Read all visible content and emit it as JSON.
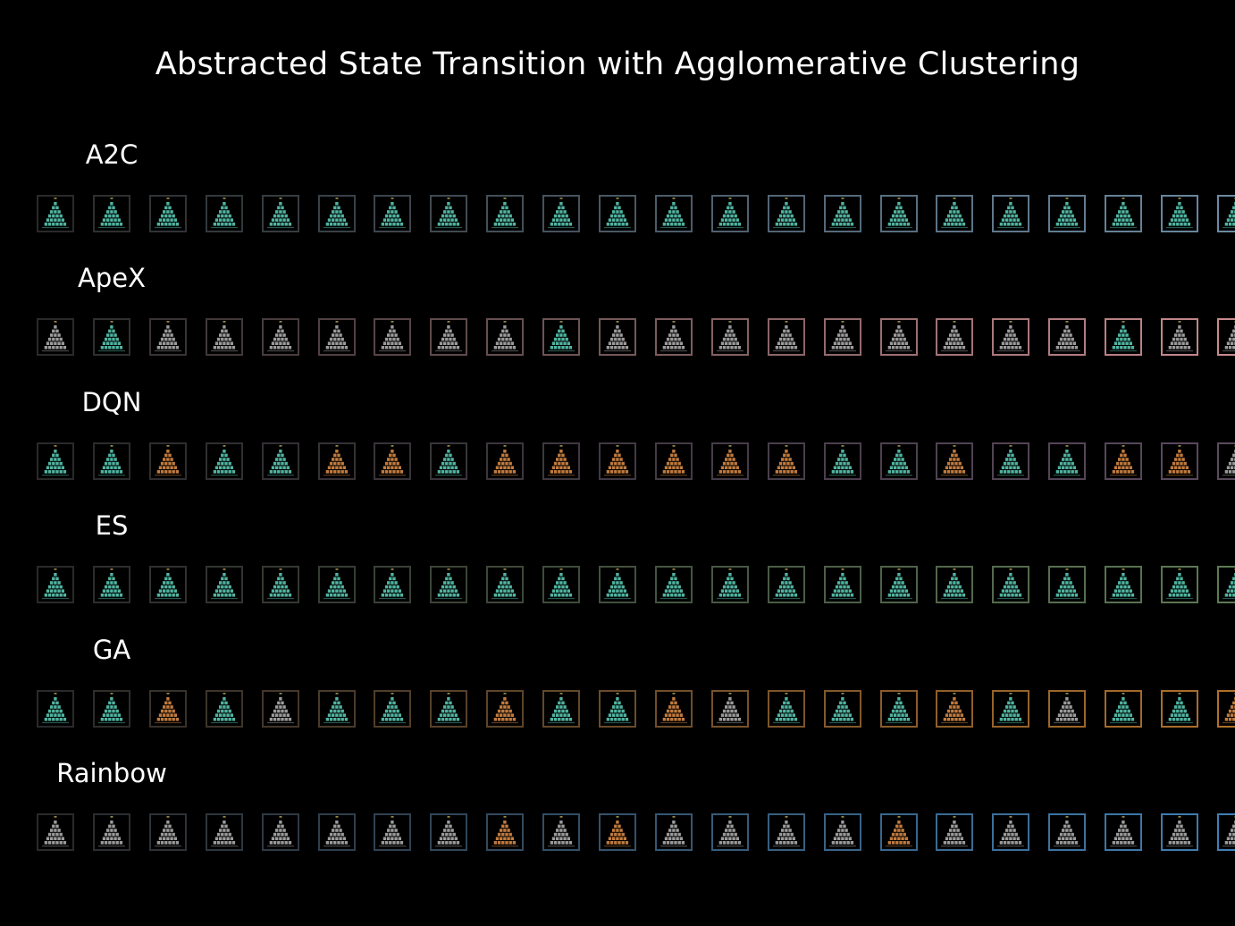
{
  "title": "Abstracted State Transition with Agglomerative Clustering",
  "cluster_colors": {
    "teal": "#4fb3a0",
    "orange": "#c07a3e",
    "gray": "#9a9a9a",
    "top_marker": "#e6d36a"
  },
  "rows": [
    {
      "label": "A2C",
      "frame_color": "#6b8aa3",
      "states": [
        "teal",
        "teal",
        "teal",
        "teal",
        "teal",
        "teal",
        "teal",
        "teal",
        "teal",
        "teal",
        "teal",
        "teal",
        "teal",
        "teal",
        "teal",
        "teal",
        "teal",
        "teal",
        "teal",
        "teal",
        "teal",
        "teal"
      ]
    },
    {
      "label": "ApeX",
      "frame_color": "#c88a8f",
      "states": [
        "gray",
        "teal",
        "gray",
        "gray",
        "gray",
        "gray",
        "gray",
        "gray",
        "gray",
        "teal",
        "gray",
        "gray",
        "gray",
        "gray",
        "gray",
        "gray",
        "gray",
        "gray",
        "gray",
        "teal",
        "gray",
        "gray"
      ]
    },
    {
      "label": "DQN",
      "frame_color": "#5b4a5e",
      "states": [
        "teal",
        "teal",
        "orange",
        "teal",
        "teal",
        "orange",
        "orange",
        "teal",
        "orange",
        "orange",
        "orange",
        "orange",
        "orange",
        "orange",
        "teal",
        "teal",
        "orange",
        "teal",
        "teal",
        "orange",
        "orange",
        "gray"
      ]
    },
    {
      "label": "ES",
      "frame_color": "#5e7a55",
      "states": [
        "teal",
        "teal",
        "teal",
        "teal",
        "teal",
        "teal",
        "teal",
        "teal",
        "teal",
        "teal",
        "teal",
        "teal",
        "teal",
        "teal",
        "teal",
        "teal",
        "teal",
        "teal",
        "teal",
        "teal",
        "teal",
        "teal"
      ]
    },
    {
      "label": "GA",
      "frame_color": "#b0702a",
      "states": [
        "teal",
        "teal",
        "orange",
        "teal",
        "gray",
        "teal",
        "teal",
        "teal",
        "orange",
        "teal",
        "teal",
        "orange",
        "gray",
        "teal",
        "teal",
        "teal",
        "orange",
        "teal",
        "gray",
        "teal",
        "teal",
        "orange"
      ]
    },
    {
      "label": "Rainbow",
      "frame_color": "#3f7fb5",
      "states": [
        "gray",
        "gray",
        "gray",
        "gray",
        "gray",
        "gray",
        "gray",
        "gray",
        "orange",
        "gray",
        "orange",
        "gray",
        "gray",
        "gray",
        "gray",
        "orange",
        "gray",
        "gray",
        "gray",
        "gray",
        "gray",
        "gray"
      ]
    }
  ]
}
